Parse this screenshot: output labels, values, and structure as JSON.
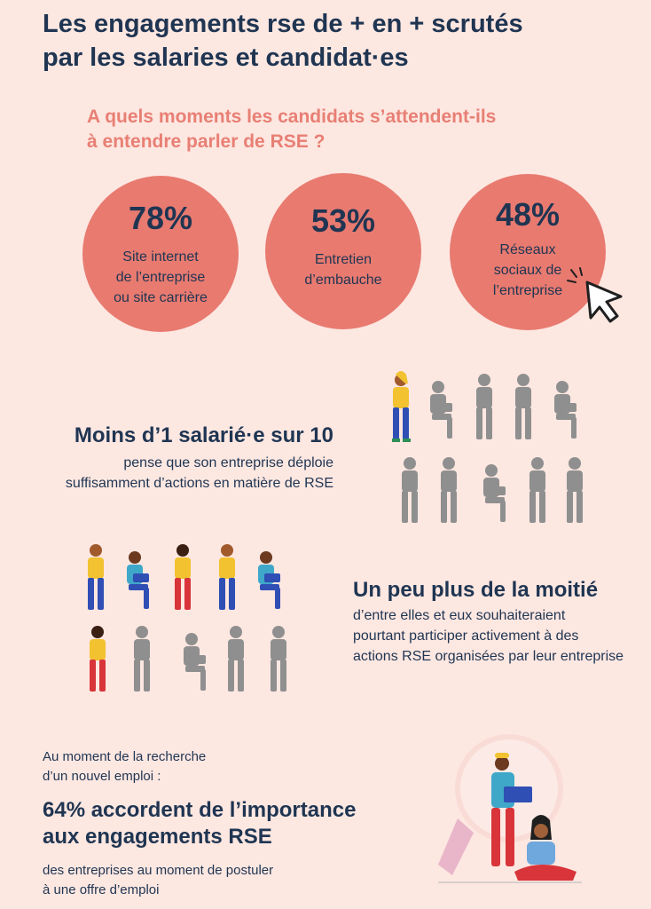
{
  "header": {
    "title_line1": "Les engagements rse de + en + scrutés",
    "title_line2": "par les salaries et candidat·es"
  },
  "question": {
    "line1": "A quels moments les candidats s’attendent-ils",
    "line2": "à entendre parler de RSE ?"
  },
  "stats": [
    {
      "value": "78%",
      "label_lines": [
        "Site internet",
        "de l’entreprise",
        "ou site carrière"
      ]
    },
    {
      "value": "53%",
      "label_lines": [
        "Entretien",
        "d’embauche"
      ]
    },
    {
      "value": "48%",
      "label_lines": [
        "Réseaux",
        "sociaux de",
        "l’entreprise"
      ]
    }
  ],
  "employees": {
    "headline": "Moins d’1 salarié·e sur 10",
    "line1": "pense que son entreprise déploie",
    "line2": "suffisamment d’actions en matière de RSE",
    "people_highlighted": 1,
    "people_total": 10
  },
  "half": {
    "headline": "Un peu plus de la moitié",
    "line1": "d’entre elles et eux souhaiteraient",
    "line2": "pourtant participer activement à des",
    "line3": "actions RSE organisées par leur entreprise",
    "people_highlighted": 6,
    "people_total": 10
  },
  "search": {
    "intro1": "Au moment de la recherche",
    "intro2": "d’un nouvel emploi :",
    "headline1": "64% accordent de l’importance",
    "headline2": "aux engagements RSE",
    "body1": "des entreprises au moment de postuler",
    "body2": "à une offre d’emploi"
  },
  "colors": {
    "background": "#fde7e1",
    "navy": "#1f3552",
    "coral": "#e87a70",
    "coral_text": "#e87f74",
    "yellow": "#f2c230",
    "blue": "#2f4fb5",
    "teal": "#3fa8c9",
    "red": "#d8343a",
    "grey": "#8a8a8a"
  },
  "icons": [
    "cursor-click-icon",
    "magnifier-illustration"
  ]
}
